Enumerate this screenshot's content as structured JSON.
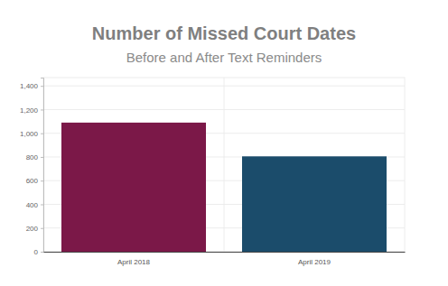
{
  "chart_data": {
    "type": "bar",
    "title": "Number of Missed Court Dates",
    "subtitle": "Before and After Text Reminders",
    "categories": [
      "April 2018",
      "April 2019"
    ],
    "values": [
      1090,
      805
    ],
    "colors": [
      "#7b1848",
      "#1b4c6b"
    ],
    "ylim": [
      0,
      1470
    ],
    "yticks": [
      0,
      200,
      400,
      600,
      800,
      {
        "value": 1000,
        "label": "1,000"
      },
      {
        "value": 1200,
        "label": "1,200"
      },
      {
        "value": 1400,
        "label": "1,400"
      }
    ],
    "grid": true
  }
}
